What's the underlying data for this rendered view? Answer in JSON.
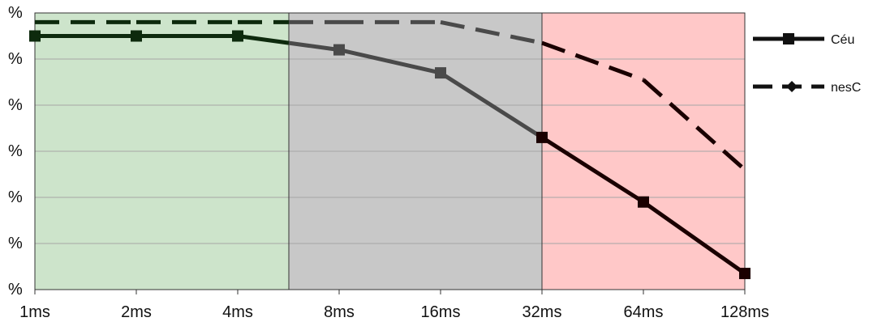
{
  "chart_data": {
    "type": "line",
    "title": "",
    "xlabel": "",
    "ylabel": "",
    "categories": [
      "1ms",
      "2ms",
      "4ms",
      "8ms",
      "16ms",
      "32ms",
      "64ms",
      "128ms"
    ],
    "y_tick_labels": [
      "%",
      "%",
      "%",
      "%",
      "%",
      "%",
      "%"
    ],
    "ylim": [
      0,
      6
    ],
    "grid": true,
    "legend_position": "right",
    "background_bands": [
      {
        "from": "1ms",
        "to": "between 4ms and 8ms",
        "color": "#cde4cb"
      },
      {
        "from": "between 4ms and 8ms",
        "to": "32ms",
        "color": "#c8c8c8"
      },
      {
        "from": "32ms",
        "to": "128ms",
        "color": "#ffc8c8"
      }
    ],
    "series": [
      {
        "name": "Céu",
        "style": "solid",
        "marker": "square",
        "values": [
          5.5,
          5.5,
          5.5,
          5.2,
          4.7,
          3.3,
          1.9,
          0.35
        ]
      },
      {
        "name": "nesC",
        "style": "dashed",
        "marker": "diamond",
        "values": [
          5.8,
          5.8,
          5.8,
          5.8,
          5.8,
          5.35,
          4.55,
          2.6
        ]
      }
    ]
  }
}
